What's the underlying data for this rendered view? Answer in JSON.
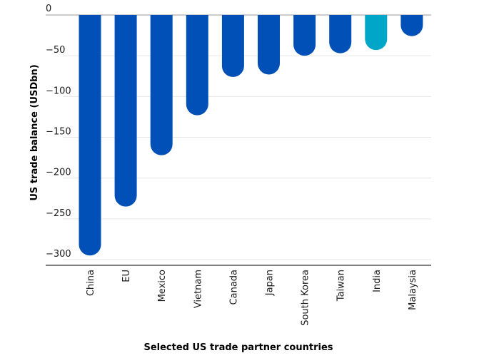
{
  "chart_data": {
    "type": "bar",
    "xlabel": "Selected US trade partner countries",
    "ylabel": "US trade balance (USDbn)",
    "categories": [
      "China",
      "EU",
      "Mexico",
      "Vietnam",
      "Canada",
      "Japan",
      "South Korea",
      "Taiwan",
      "India",
      "Malaysia"
    ],
    "values": [
      -295,
      -235,
      -172,
      -123,
      -76,
      -73,
      -50,
      -47,
      -43,
      -26
    ],
    "highlight": "India",
    "colors": {
      "bar": "#0050b8",
      "highlight": "#00a6c8"
    },
    "yticks": [
      0,
      -50,
      -100,
      -150,
      -200,
      -250,
      -300
    ],
    "ylim": [
      -300,
      0
    ],
    "grid": true
  }
}
